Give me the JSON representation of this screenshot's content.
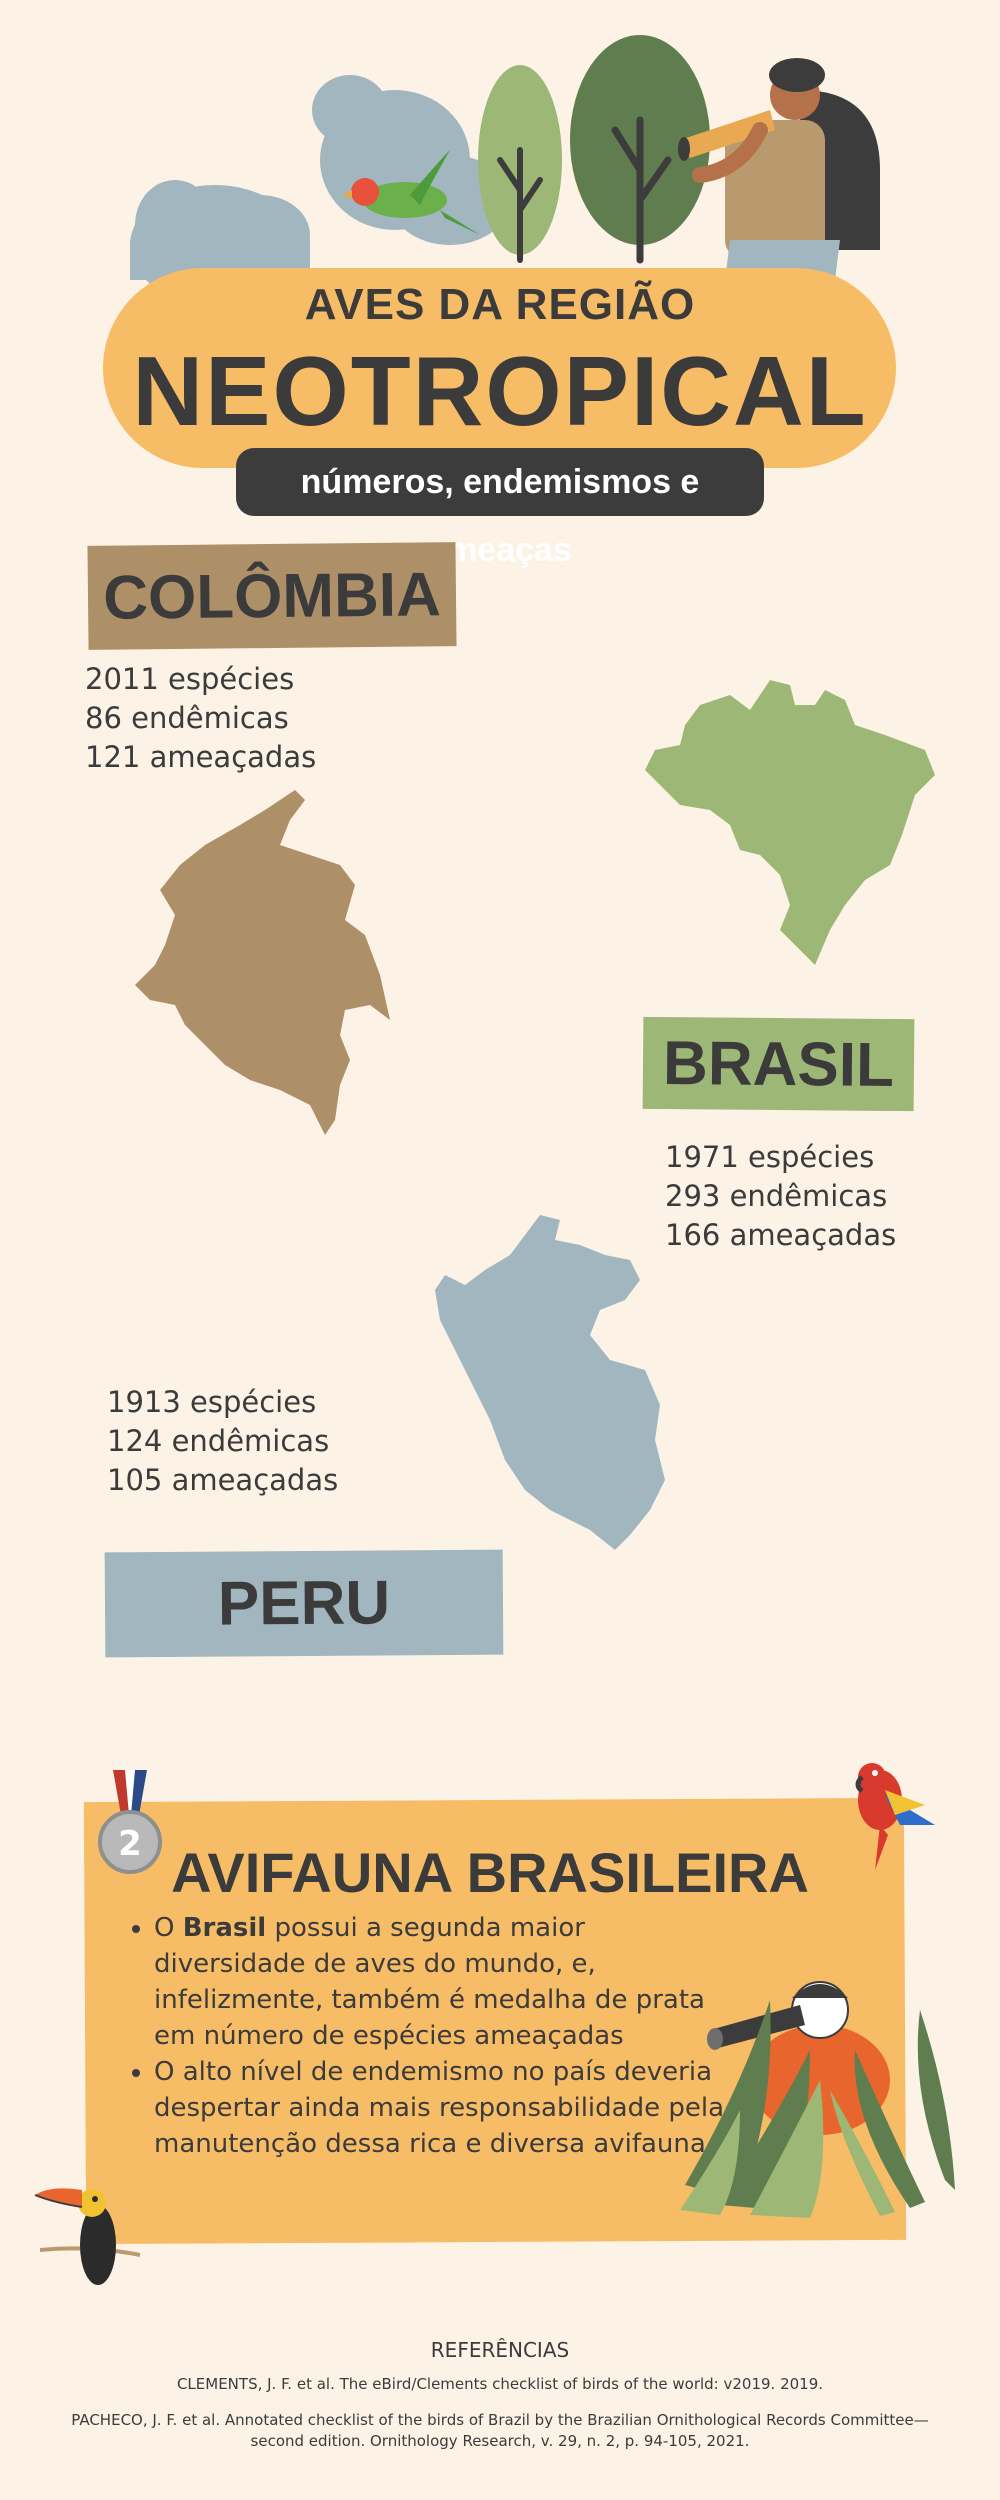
{
  "header": {
    "subtitle": "AVES DA REGIÃO",
    "title": "NEOTROPICAL",
    "tagline": "números, endemismos e ameaças"
  },
  "countries": [
    {
      "name": "COLÔMBIA",
      "stats": [
        "2011 espécies",
        "86 endêmicas",
        "121 ameaçadas"
      ],
      "color": "#ae9068"
    },
    {
      "name": "BRASIL",
      "stats": [
        "1971 espécies",
        "293 endêmicas",
        "166 ameaçadas"
      ],
      "color": "#9db876"
    },
    {
      "name": "PERU",
      "stats": [
        "1913 espécies",
        "124 endêmicas",
        "105 ameaçadas"
      ],
      "color": "#a1b6bf"
    }
  ],
  "avifauna": {
    "title": "AVIFAUNA BRASILEIRA",
    "bullet1_bold": "Brasil",
    "bullet1_pre": "O ",
    "bullet1_rest": " possui a segunda maior diversidade de aves do mundo, e, infelizmente, também é medalha de prata em número de espécies ameaçadas",
    "bullet2": "O alto nível de endemismo no país deveria despertar ainda mais responsabilidade pela manutenção dessa rica e diversa avifauna.",
    "medal_number": "2",
    "color": "#f7bd66"
  },
  "references": {
    "heading": "REFERÊNCIAS",
    "items": [
      "CLEMENTS, J. F. et al. The eBird/Clements checklist of birds of the world: v2019. 2019.",
      "PACHECO, J. F. et al. Annotated checklist of the birds of Brazil by the Brazilian Ornithological Records Committee—second edition. Ornithology Research, v. 29, n. 2, p. 94-105, 2021."
    ]
  },
  "icons": [
    "lovebird-icon",
    "tree-icon",
    "explorer-binoculars-icon",
    "colombia-map-icon",
    "brazil-map-icon",
    "peru-map-icon",
    "silver-medal-icon",
    "macaw-icon",
    "toucan-icon",
    "boy-binoculars-icon"
  ],
  "colors": {
    "background": "#fcf3e6",
    "banner": "#f7bd66",
    "dark": "#3c3c3c"
  }
}
